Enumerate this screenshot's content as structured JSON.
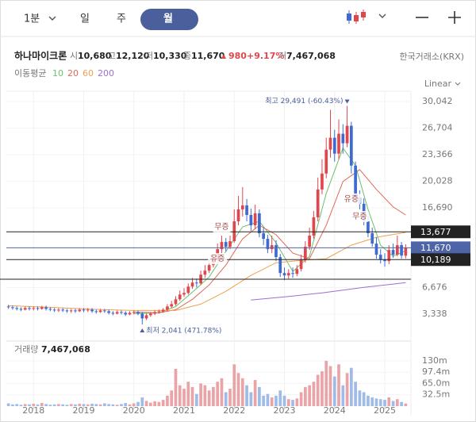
{
  "toolbar": {
    "periods": [
      "1분",
      "일",
      "주",
      "월"
    ],
    "selected": 3
  },
  "quote": {
    "name": "하나마이크론",
    "fields": [
      {
        "label": "시",
        "value": "10,680"
      },
      {
        "label": "고",
        "value": "12,120"
      },
      {
        "label": "저",
        "value": "10,330"
      },
      {
        "label": "종",
        "value": "11,670"
      }
    ],
    "change": "980",
    "change_pct": "+9.17%",
    "volume_label": "거",
    "volume": "7,467,068",
    "exchange": "한국거래소(KRX)"
  },
  "ma_label": "이동평균",
  "scale_mode": "Linear",
  "chart_data": [
    {
      "type": "candlestick",
      "up_color": "#e0474c",
      "down_color": "#3d6bd1",
      "open": [
        4300,
        4200,
        4100,
        4000,
        3900,
        4100,
        4000,
        4100,
        4000,
        4200,
        4000,
        3900,
        3800,
        3900,
        3800,
        3700,
        3800,
        3700,
        3900,
        3800,
        3900,
        3700,
        3600,
        3800,
        3700,
        3500,
        3400,
        3600,
        3500,
        3300,
        3500,
        3600,
        3400,
        2800,
        3200,
        3400,
        3600,
        3700,
        3900,
        4300,
        4600,
        5200,
        5800,
        6000,
        6800,
        7300,
        7200,
        8300,
        8800,
        9500,
        10100,
        11500,
        12400,
        11800,
        12500,
        15000,
        16500,
        17000,
        15800,
        14500,
        16000,
        13500,
        12800,
        11500,
        12000,
        10500,
        8500,
        8200,
        8500,
        8400,
        9000,
        10200,
        11800,
        13200,
        15500,
        19000,
        21000,
        24000,
        25500,
        23500,
        26000,
        24800,
        27000,
        22000,
        18000,
        17200,
        15000,
        13500,
        12200,
        10800,
        10200,
        10000,
        11400,
        10800,
        12000,
        10680
      ],
      "high": [
        4500,
        4400,
        4300,
        4200,
        4300,
        4300,
        4300,
        4300,
        4400,
        4400,
        4200,
        4100,
        4100,
        4100,
        4000,
        4000,
        4000,
        4100,
        4100,
        4100,
        4100,
        3900,
        4000,
        4000,
        3900,
        3700,
        3800,
        3800,
        3700,
        3700,
        3800,
        3800,
        3600,
        3400,
        3600,
        3800,
        3900,
        4100,
        4600,
        5000,
        5600,
        6300,
        6600,
        7200,
        7900,
        7800,
        8800,
        9500,
        10200,
        10900,
        12200,
        13200,
        12900,
        13200,
        16500,
        18200,
        19300,
        17800,
        16600,
        17100,
        16500,
        14200,
        13300,
        13200,
        12600,
        10900,
        9200,
        9000,
        9200,
        9500,
        10800,
        12500,
        14200,
        16300,
        20500,
        22800,
        25500,
        29000,
        26500,
        27800,
        27200,
        29491,
        27500,
        22500,
        18900,
        17900,
        15700,
        14200,
        13000,
        11500,
        11000,
        12000,
        12200,
        13200,
        12400,
        12120
      ],
      "low": [
        4000,
        3900,
        3800,
        3700,
        3800,
        3800,
        3800,
        3800,
        3900,
        3800,
        3700,
        3600,
        3600,
        3600,
        3500,
        3500,
        3500,
        3600,
        3600,
        3600,
        3500,
        3400,
        3500,
        3500,
        3300,
        3200,
        3300,
        3300,
        3100,
        3200,
        3300,
        3200,
        2041,
        2600,
        3000,
        3200,
        3400,
        3500,
        3700,
        4100,
        4400,
        5000,
        5500,
        5800,
        6500,
        6700,
        7000,
        7900,
        8500,
        9200,
        9800,
        11000,
        11200,
        11500,
        12300,
        14500,
        15600,
        15000,
        13800,
        14000,
        13000,
        12000,
        11000,
        11000,
        10000,
        8000,
        7600,
        7800,
        7900,
        8100,
        8700,
        9800,
        11400,
        12800,
        15000,
        18400,
        20400,
        23000,
        22500,
        22800,
        23500,
        24300,
        21000,
        17200,
        16500,
        14500,
        13000,
        11800,
        10300,
        9700,
        9300,
        9600,
        10400,
        10600,
        10300,
        10330
      ],
      "close": [
        4200,
        4100,
        4000,
        3900,
        4100,
        4000,
        4100,
        4000,
        4200,
        4000,
        3900,
        3800,
        3900,
        3800,
        3700,
        3800,
        3700,
        3900,
        3800,
        3900,
        3700,
        3600,
        3800,
        3700,
        3500,
        3400,
        3600,
        3500,
        3300,
        3500,
        3600,
        3400,
        2800,
        3200,
        3400,
        3600,
        3700,
        3900,
        4300,
        4600,
        5200,
        5800,
        6000,
        6800,
        7300,
        7200,
        8300,
        8800,
        9500,
        10100,
        11500,
        12400,
        11800,
        12500,
        15000,
        16500,
        17000,
        15800,
        14500,
        16000,
        13500,
        12800,
        11500,
        12000,
        10500,
        8500,
        8200,
        8500,
        8400,
        9000,
        10200,
        11800,
        13200,
        15500,
        19000,
        21000,
        24000,
        25500,
        23500,
        26000,
        24800,
        27000,
        22000,
        18000,
        17200,
        15000,
        13500,
        12200,
        10800,
        10200,
        10000,
        11400,
        10800,
        12000,
        10690,
        11670
      ],
      "xlim": [
        -0.5,
        95.5
      ],
      "xticks": [
        {
          "value": 6,
          "label": "2018"
        },
        {
          "value": 18,
          "label": "2019"
        },
        {
          "value": 30,
          "label": "2020"
        },
        {
          "value": 42,
          "label": "2021"
        },
        {
          "value": 54,
          "label": "2022"
        },
        {
          "value": 66,
          "label": "2023"
        },
        {
          "value": 78,
          "label": "2024"
        },
        {
          "value": 90,
          "label": "2025"
        }
      ],
      "ylim": [
        450,
        31340
      ],
      "yticks": [
        {
          "value": 30042,
          "label": "30,042"
        },
        {
          "value": 26704,
          "label": "26,704"
        },
        {
          "value": 23366,
          "label": "23,366"
        },
        {
          "value": 20028,
          "label": "20,028"
        },
        {
          "value": 16690,
          "label": "16,690"
        },
        {
          "value": 6676,
          "label": "6,676"
        },
        {
          "value": 3338,
          "label": "3,338"
        }
      ],
      "grid": true,
      "levels": [
        {
          "value": 13677,
          "label": "13,677",
          "color": "#222222"
        },
        {
          "value": 11670,
          "label": "11,670",
          "color": "#4e64a8"
        },
        {
          "value": 10189,
          "label": "10,189",
          "color": "#222222"
        },
        {
          "value": 7720,
          "color": "#222222"
        }
      ],
      "annotations": [
        {
          "text": "최고 29,491 (-60.43%)",
          "x": 81,
          "y": 29491,
          "side": "top"
        },
        {
          "text": "최저 2,041 (471.78%)",
          "x": 32,
          "y": 2041,
          "side": "bottom"
        }
      ],
      "events": [
        {
          "label": "무증",
          "x": 51,
          "y": 14300
        },
        {
          "label": "유증",
          "x": 50,
          "y": 10300
        },
        {
          "label": "유증",
          "x": 82,
          "y": 17800
        },
        {
          "label": "무증",
          "x": 84,
          "y": 15600
        }
      ],
      "series": [
        {
          "name": "10",
          "color": "#6cbf6c",
          "x": [
            30,
            36,
            40,
            44,
            48,
            52,
            56,
            60,
            64,
            68,
            72,
            76,
            80,
            83,
            86,
            89,
            92,
            95
          ],
          "values": [
            3400,
            3500,
            4300,
            6100,
            8000,
            11200,
            14300,
            15000,
            12300,
            8700,
            10600,
            18500,
            24200,
            22000,
            16500,
            12000,
            10600,
            11300
          ]
        },
        {
          "name": "20",
          "color": "#e06a5a",
          "x": [
            30,
            36,
            40,
            44,
            48,
            52,
            56,
            60,
            64,
            68,
            72,
            76,
            80,
            84,
            88,
            92,
            95
          ],
          "values": [
            3600,
            3500,
            3900,
            5200,
            7000,
            9500,
            12800,
            14500,
            13300,
            11000,
            10300,
            14500,
            20000,
            21500,
            19000,
            16800,
            15800
          ]
        },
        {
          "name": "60",
          "color": "#f0a050",
          "x": [
            0,
            10,
            20,
            30,
            40,
            46,
            52,
            58,
            64,
            70,
            76,
            82,
            88,
            95
          ],
          "values": [
            4400,
            4200,
            3950,
            3800,
            3800,
            4600,
            6200,
            8200,
            9800,
            10100,
            10300,
            12000,
            13000,
            13600
          ]
        },
        {
          "name": "200",
          "color": "#9a6fd0",
          "x": [
            58,
            66,
            75,
            85,
            95
          ],
          "values": [
            5100,
            5500,
            6000,
            6700,
            7300
          ]
        }
      ]
    },
    {
      "type": "bar",
      "title": "거래량",
      "title_value": "7,467,068",
      "up_color": "#eaa3a6",
      "down_color": "#9fbbe8",
      "values": [
        8,
        5,
        6,
        4,
        6,
        5,
        7,
        5,
        9,
        6,
        4,
        5,
        6,
        5,
        4,
        6,
        5,
        7,
        6,
        5,
        7,
        6,
        5,
        8,
        6,
        5,
        4,
        6,
        9,
        5,
        8,
        12,
        25,
        15,
        10,
        14,
        12,
        18,
        30,
        45,
        107,
        60,
        50,
        70,
        55,
        35,
        65,
        60,
        45,
        55,
        70,
        80,
        40,
        50,
        120,
        95,
        80,
        60,
        40,
        75,
        55,
        30,
        35,
        25,
        30,
        45,
        30,
        20,
        18,
        22,
        40,
        55,
        60,
        70,
        90,
        100,
        130,
        115,
        85,
        120,
        60,
        95,
        110,
        70,
        45,
        40,
        30,
        25,
        22,
        20,
        18,
        25,
        15,
        20,
        12,
        7.467
      ],
      "ylim": [
        0,
        164
      ],
      "yticks": [
        {
          "value": 130,
          "label": "130m"
        },
        {
          "value": 97.4,
          "label": "97.4m"
        },
        {
          "value": 65.0,
          "label": "65.0m"
        },
        {
          "value": 32.5,
          "label": "32.5m"
        }
      ]
    }
  ]
}
